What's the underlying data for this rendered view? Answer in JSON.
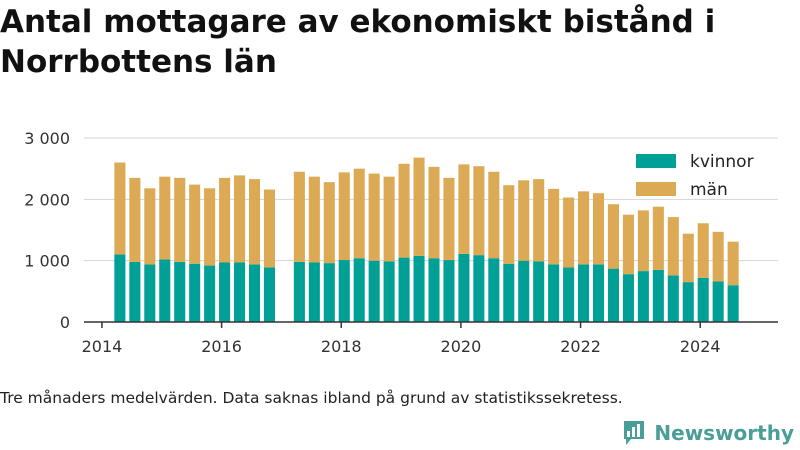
{
  "title": "Antal mottagare av ekonomiskt bistånd i Norrbottens län",
  "caption": "Tre månaders medelvärden. Data saknas ibland på grund av statistikssekretess.",
  "brand": {
    "name": "Newsworthy",
    "icon": "newsworthy-logo-icon"
  },
  "colors": {
    "kvinnor": "#00a096",
    "man": "#dcaa55",
    "axis": "#333333",
    "grid": "#d4d4d4"
  },
  "chart_data": {
    "type": "bar",
    "stacked": true,
    "ylim": [
      0,
      3000
    ],
    "yticks": [
      0,
      1000,
      2000,
      3000
    ],
    "ytick_labels": [
      "0",
      "1 000",
      "2 000",
      "3 000"
    ],
    "xlim": [
      2013.7,
      2025.3
    ],
    "xticks": [
      2014,
      2016,
      2018,
      2020,
      2022,
      2024
    ],
    "xtick_labels": [
      "2014",
      "2016",
      "2018",
      "2020",
      "2022",
      "2024"
    ],
    "grid": true,
    "legend_position": "top-right",
    "x": [
      2014.3,
      2014.55,
      2014.8,
      2015.05,
      2015.3,
      2015.55,
      2015.8,
      2016.05,
      2016.3,
      2016.55,
      2016.8,
      2017.3,
      2017.55,
      2017.8,
      2018.05,
      2018.3,
      2018.55,
      2018.8,
      2019.05,
      2019.3,
      2019.55,
      2019.8,
      2020.05,
      2020.3,
      2020.55,
      2020.8,
      2021.05,
      2021.3,
      2021.55,
      2021.8,
      2022.05,
      2022.3,
      2022.55,
      2022.8,
      2023.05,
      2023.3,
      2023.55,
      2023.8,
      2024.05,
      2024.3,
      2024.55
    ],
    "series": [
      {
        "name": "kvinnor",
        "values": [
          1100,
          980,
          940,
          1020,
          980,
          950,
          920,
          970,
          970,
          940,
          890,
          980,
          970,
          960,
          1010,
          1040,
          1000,
          990,
          1050,
          1080,
          1040,
          1010,
          1110,
          1090,
          1040,
          950,
          1000,
          990,
          940,
          890,
          940,
          940,
          870,
          780,
          830,
          850,
          760,
          650,
          720,
          660,
          600
        ]
      },
      {
        "name": "män",
        "values": [
          1500,
          1370,
          1240,
          1350,
          1370,
          1290,
          1260,
          1380,
          1420,
          1390,
          1270,
          1470,
          1400,
          1320,
          1430,
          1460,
          1420,
          1380,
          1530,
          1600,
          1490,
          1340,
          1460,
          1450,
          1410,
          1280,
          1310,
          1340,
          1230,
          1140,
          1190,
          1160,
          1050,
          970,
          990,
          1030,
          950,
          790,
          890,
          810,
          710
        ]
      }
    ]
  }
}
